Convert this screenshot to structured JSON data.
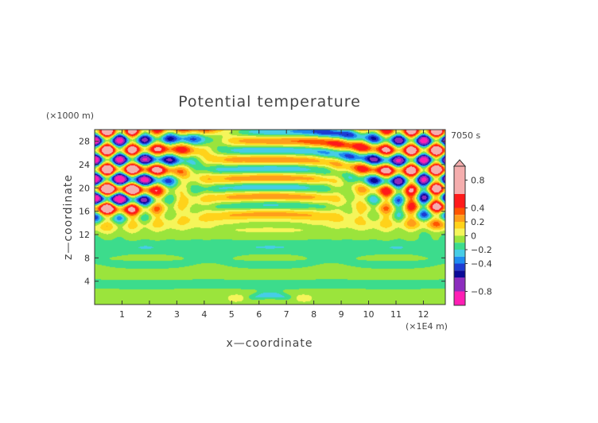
{
  "chart_data": {
    "type": "heatmap",
    "title": "Potential temperature",
    "xlabel": "x—coordinate",
    "ylabel": "z—coordinate",
    "x_unit": "(×1E4 m)",
    "y_unit": "(×1000 m)",
    "time_label": "7050 s",
    "xlim": [
      0,
      12.8
    ],
    "ylim": [
      0,
      30
    ],
    "x_ticks": [
      1,
      2,
      3,
      4,
      5,
      6,
      7,
      8,
      9,
      10,
      11,
      12
    ],
    "y_ticks": [
      4,
      8,
      12,
      16,
      20,
      24,
      28
    ],
    "colorbar": {
      "min": -1.0,
      "max": 1.0,
      "tick_values": [
        0.8,
        0.4,
        0.2,
        0,
        -0.2,
        -0.4,
        -0.8
      ],
      "tick_labels": [
        "0.8",
        "0.4",
        "0.2",
        "0",
        "−0.2",
        "−0.4",
        "−0.8"
      ],
      "levels": [
        {
          "from": 0.6,
          "to": 1.0,
          "color": "#f5aeae"
        },
        {
          "from": 0.4,
          "to": 0.6,
          "color": "#ff1a1a"
        },
        {
          "from": 0.3,
          "to": 0.4,
          "color": "#ff5500"
        },
        {
          "from": 0.2,
          "to": 0.3,
          "color": "#ff9e1a"
        },
        {
          "from": 0.1,
          "to": 0.2,
          "color": "#ffd21a"
        },
        {
          "from": 0.0,
          "to": 0.1,
          "color": "#f5f55a"
        },
        {
          "from": -0.1,
          "to": 0.0,
          "color": "#9be43c"
        },
        {
          "from": -0.2,
          "to": -0.1,
          "color": "#3cdc8c"
        },
        {
          "from": -0.3,
          "to": -0.2,
          "color": "#46cde6"
        },
        {
          "from": -0.4,
          "to": -0.3,
          "color": "#1e8cf0"
        },
        {
          "from": -0.5,
          "to": -0.4,
          "color": "#1e3cd2"
        },
        {
          "from": -0.6,
          "to": -0.5,
          "color": "#0a0a96"
        },
        {
          "from": -0.8,
          "to": -0.6,
          "color": "#8c2dbe"
        },
        {
          "from": -1.0,
          "to": -0.8,
          "color": "#ff1eb4"
        }
      ]
    },
    "grid": false,
    "legend": "colorbar-right"
  }
}
